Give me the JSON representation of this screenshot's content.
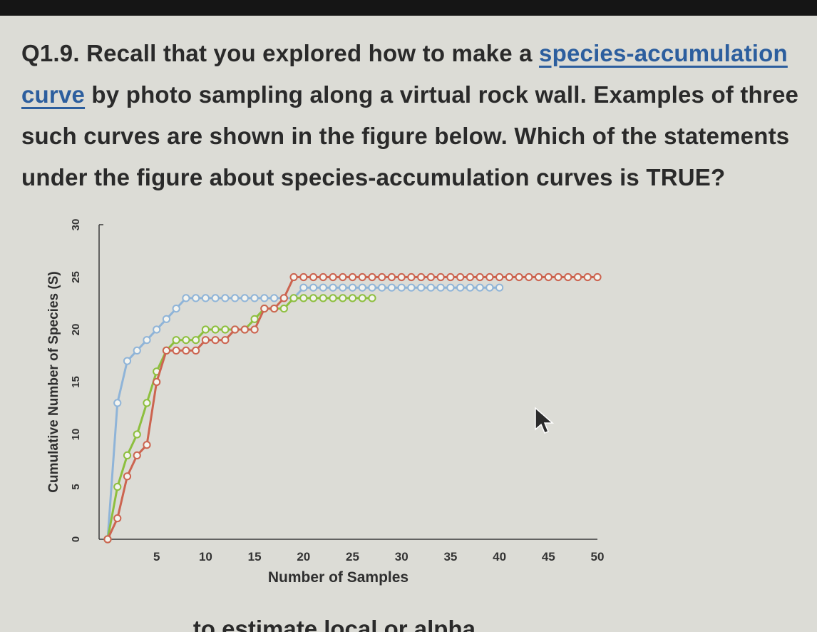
{
  "question": {
    "prefix": "Q1.9. Recall that you explored how to make a ",
    "link_text": "species-accumulation curve",
    "suffix": " by photo sampling along a virtual rock wall. Examples of three such curves are shown in the figure below. Which of the statements under the figure about species-accumulation curves is TRUE?"
  },
  "partial_text": "… … … … … to estimate local or alpha",
  "cursor_icon": "arrow-cursor-icon",
  "colors": {
    "blue": "#8fb4d8",
    "green": "#8dbf3e",
    "red": "#cc6450",
    "axis": "#3a3a3a"
  },
  "chart_data": {
    "type": "line",
    "title": "",
    "xlabel": "Number of Samples",
    "ylabel": "Cumulative Number of Species (S)",
    "xlim": [
      0,
      50
    ],
    "ylim": [
      0,
      30
    ],
    "xticks": [
      5,
      10,
      15,
      20,
      25,
      30,
      35,
      40,
      45,
      50
    ],
    "yticks": [
      0,
      5,
      10,
      15,
      20,
      25,
      30
    ],
    "grid": false,
    "legend": "none",
    "series": [
      {
        "color": "#8fb4d8",
        "x": [
          0,
          1,
          2,
          3,
          4,
          5,
          6,
          7,
          8,
          9,
          10,
          11,
          12,
          13,
          14,
          15,
          16,
          17,
          18,
          19,
          20,
          21,
          22,
          23,
          24,
          25,
          26,
          27,
          28,
          29,
          30,
          31,
          32,
          33,
          34,
          35,
          36,
          37,
          38,
          39,
          40
        ],
        "y": [
          0,
          13,
          17,
          18,
          19,
          20,
          21,
          22,
          23,
          23,
          23,
          23,
          23,
          23,
          23,
          23,
          23,
          23,
          23,
          23,
          24,
          24,
          24,
          24,
          24,
          24,
          24,
          24,
          24,
          24,
          24,
          24,
          24,
          24,
          24,
          24,
          24,
          24,
          24,
          24,
          24
        ]
      },
      {
        "color": "#8dbf3e",
        "x": [
          0,
          1,
          2,
          3,
          4,
          5,
          6,
          7,
          8,
          9,
          10,
          11,
          12,
          13,
          14,
          15,
          16,
          17,
          18,
          19,
          20,
          21,
          22,
          23,
          24,
          25,
          26,
          27
        ],
        "y": [
          0,
          5,
          8,
          10,
          13,
          16,
          18,
          19,
          19,
          19,
          20,
          20,
          20,
          20,
          20,
          21,
          22,
          22,
          22,
          23,
          23,
          23,
          23,
          23,
          23,
          23,
          23,
          23
        ]
      },
      {
        "color": "#cc6450",
        "x": [
          0,
          1,
          2,
          3,
          4,
          5,
          6,
          7,
          8,
          9,
          10,
          11,
          12,
          13,
          14,
          15,
          16,
          17,
          18,
          19,
          20,
          21,
          22,
          23,
          24,
          25,
          26,
          27,
          28,
          29,
          30,
          31,
          32,
          33,
          34,
          35,
          36,
          37,
          38,
          39,
          40,
          41,
          42,
          43,
          44,
          45,
          46,
          47,
          48,
          49,
          50
        ],
        "y": [
          0,
          2,
          6,
          8,
          9,
          15,
          18,
          18,
          18,
          18,
          19,
          19,
          19,
          20,
          20,
          20,
          22,
          22,
          23,
          25,
          25,
          25,
          25,
          25,
          25,
          25,
          25,
          25,
          25,
          25,
          25,
          25,
          25,
          25,
          25,
          25,
          25,
          25,
          25,
          25,
          25,
          25,
          25,
          25,
          25,
          25,
          25,
          25,
          25,
          25,
          25
        ]
      }
    ]
  }
}
